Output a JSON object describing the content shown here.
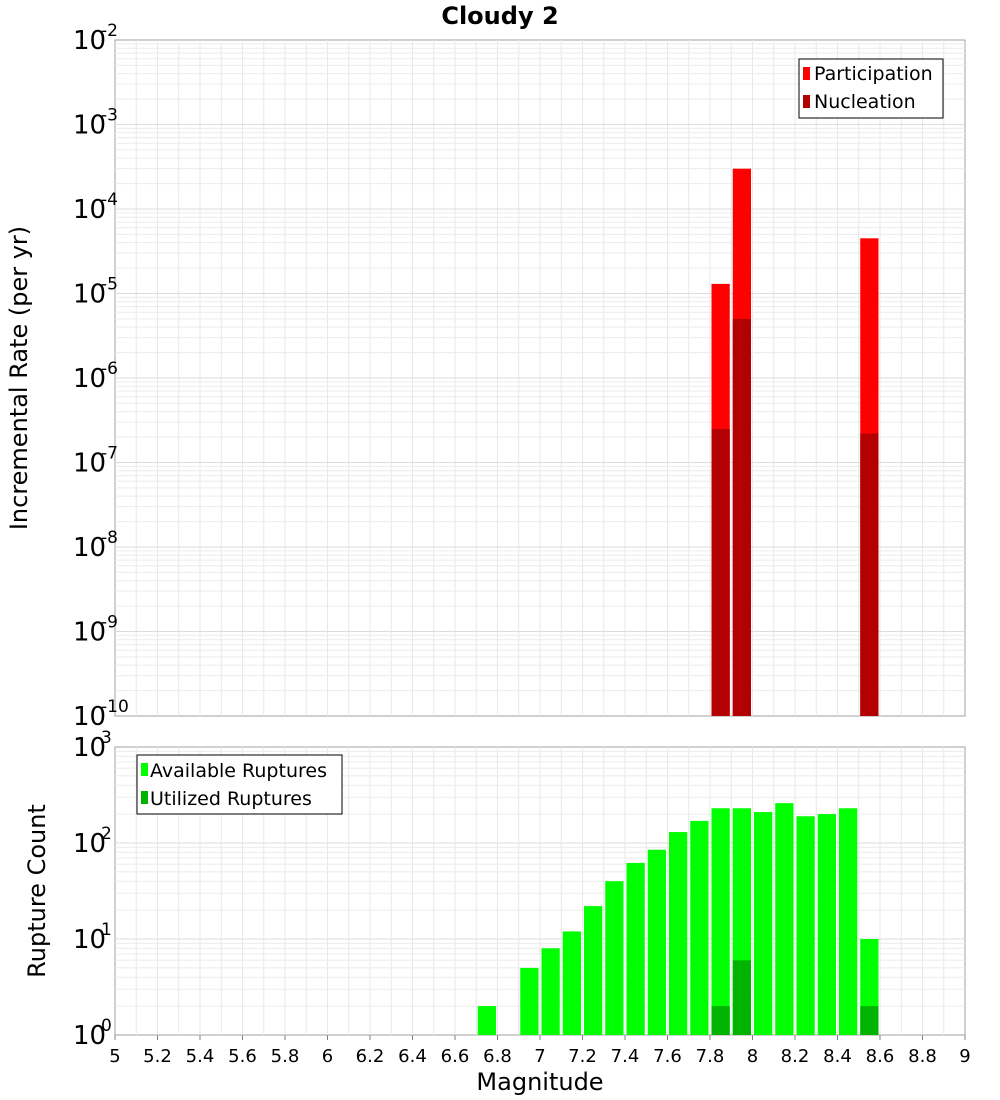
{
  "chart_data": [
    {
      "type": "bar",
      "title": "Cloudy 2",
      "xlabel": "Magnitude",
      "ylabel": "Incremental Rate (per yr)",
      "yscale": "log",
      "ylim": [
        1e-10,
        0.01
      ],
      "xlim": [
        5,
        9
      ],
      "bin_width": 0.1,
      "grid": true,
      "legend_position": "top-right",
      "series": [
        {
          "name": "Participation",
          "color": "#ff0000",
          "x": [
            7.85,
            7.95,
            8.55
          ],
          "values": [
            1.3e-05,
            0.0003,
            4.5e-05
          ]
        },
        {
          "name": "Nucleation",
          "color": "#b30000",
          "x": [
            7.85,
            7.95,
            8.55
          ],
          "values": [
            2.5e-07,
            5e-06,
            2.2e-07
          ]
        }
      ]
    },
    {
      "type": "bar",
      "xlabel": "Magnitude",
      "ylabel": "Rupture Count",
      "yscale": "log",
      "ylim": [
        1,
        1000
      ],
      "xlim": [
        5,
        9
      ],
      "bin_width": 0.1,
      "grid": true,
      "legend_position": "top-left",
      "x_ticks": [
        "5",
        "5.2",
        "5.4",
        "5.6",
        "5.8",
        "6",
        "6.2",
        "6.4",
        "6.6",
        "6.8",
        "7",
        "7.2",
        "7.4",
        "7.6",
        "7.8",
        "8",
        "8.2",
        "8.4",
        "8.6",
        "8.8",
        "9"
      ],
      "series": [
        {
          "name": "Available Ruptures",
          "color": "#00ff00",
          "x": [
            6.25,
            6.75,
            6.85,
            6.95,
            7.05,
            7.15,
            7.25,
            7.35,
            7.45,
            7.55,
            7.65,
            7.75,
            7.85,
            7.95,
            8.05,
            8.15,
            8.25,
            8.35,
            8.45,
            8.55
          ],
          "values": [
            1,
            2,
            1,
            5,
            8,
            12,
            22,
            40,
            62,
            85,
            130,
            170,
            230,
            230,
            210,
            260,
            190,
            200,
            230,
            10
          ]
        },
        {
          "name": "Utilized Ruptures",
          "color": "#00b300",
          "x": [
            7.85,
            7.95,
            8.55
          ],
          "values": [
            2,
            6,
            2
          ]
        }
      ]
    }
  ]
}
